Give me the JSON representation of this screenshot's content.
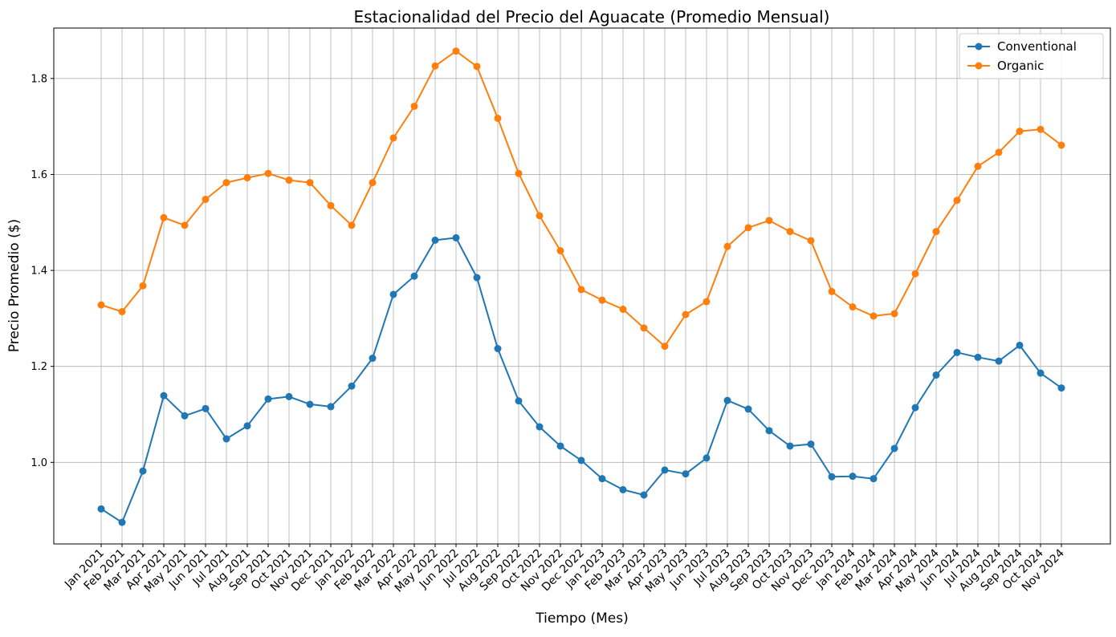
{
  "chart_data": {
    "type": "line",
    "title": "Estacionalidad del Precio del Aguacate (Promedio Mensual)",
    "xlabel": "Tiempo (Mes)",
    "ylabel": "Precio Promedio ($)",
    "ylim": [
      0.83,
      1.905
    ],
    "yticks": [
      1.0,
      1.2,
      1.4,
      1.6,
      1.8
    ],
    "ytick_labels": [
      "1.0",
      "1.2",
      "1.4",
      "1.6",
      "1.8"
    ],
    "grid": true,
    "legend_position": "top-right",
    "categories": [
      "Jan 2021",
      "Feb 2021",
      "Mar 2021",
      "Apr 2021",
      "May 2021",
      "Jun 2021",
      "Jul 2021",
      "Aug 2021",
      "Sep 2021",
      "Oct 2021",
      "Nov 2021",
      "Dec 2021",
      "Jan 2022",
      "Feb 2022",
      "Mar 2022",
      "Apr 2022",
      "May 2022",
      "Jun 2022",
      "Jul 2022",
      "Aug 2022",
      "Sep 2022",
      "Oct 2022",
      "Nov 2022",
      "Dec 2022",
      "Jan 2023",
      "Feb 2023",
      "Mar 2023",
      "Apr 2023",
      "May 2023",
      "Jun 2023",
      "Jul 2023",
      "Aug 2023",
      "Sep 2023",
      "Oct 2023",
      "Nov 2023",
      "Dec 2023",
      "Jan 2024",
      "Feb 2024",
      "Mar 2024",
      "Apr 2024",
      "May 2024",
      "Jun 2024",
      "Jul 2024",
      "Aug 2024",
      "Sep 2024",
      "Oct 2024",
      "Nov 2024"
    ],
    "series": [
      {
        "name": "Conventional",
        "color": "#1f77b4",
        "values": [
          0.903,
          0.875,
          0.982,
          1.139,
          1.097,
          1.112,
          1.049,
          1.076,
          1.132,
          1.137,
          1.121,
          1.116,
          1.159,
          1.217,
          1.35,
          1.388,
          1.463,
          1.468,
          1.385,
          1.237,
          1.128,
          1.074,
          1.034,
          1.004,
          0.966,
          0.943,
          0.932,
          0.984,
          0.976,
          1.009,
          1.129,
          1.111,
          1.066,
          1.034,
          1.038,
          0.97,
          0.971,
          0.966,
          1.029,
          1.114,
          1.182,
          1.229,
          1.219,
          1.211,
          1.244,
          1.186,
          1.155
        ]
      },
      {
        "name": "Organic",
        "color": "#ff7f0e",
        "values": [
          1.328,
          1.314,
          1.368,
          1.51,
          1.494,
          1.548,
          1.583,
          1.593,
          1.602,
          1.588,
          1.583,
          1.535,
          1.494,
          1.583,
          1.676,
          1.742,
          1.826,
          1.857,
          1.825,
          1.717,
          1.602,
          1.514,
          1.441,
          1.36,
          1.338,
          1.319,
          1.28,
          1.242,
          1.308,
          1.335,
          1.45,
          1.489,
          1.504,
          1.481,
          1.462,
          1.356,
          1.324,
          1.305,
          1.31,
          1.393,
          1.481,
          1.546,
          1.617,
          1.646,
          1.69,
          1.694,
          1.661
        ]
      }
    ]
  }
}
